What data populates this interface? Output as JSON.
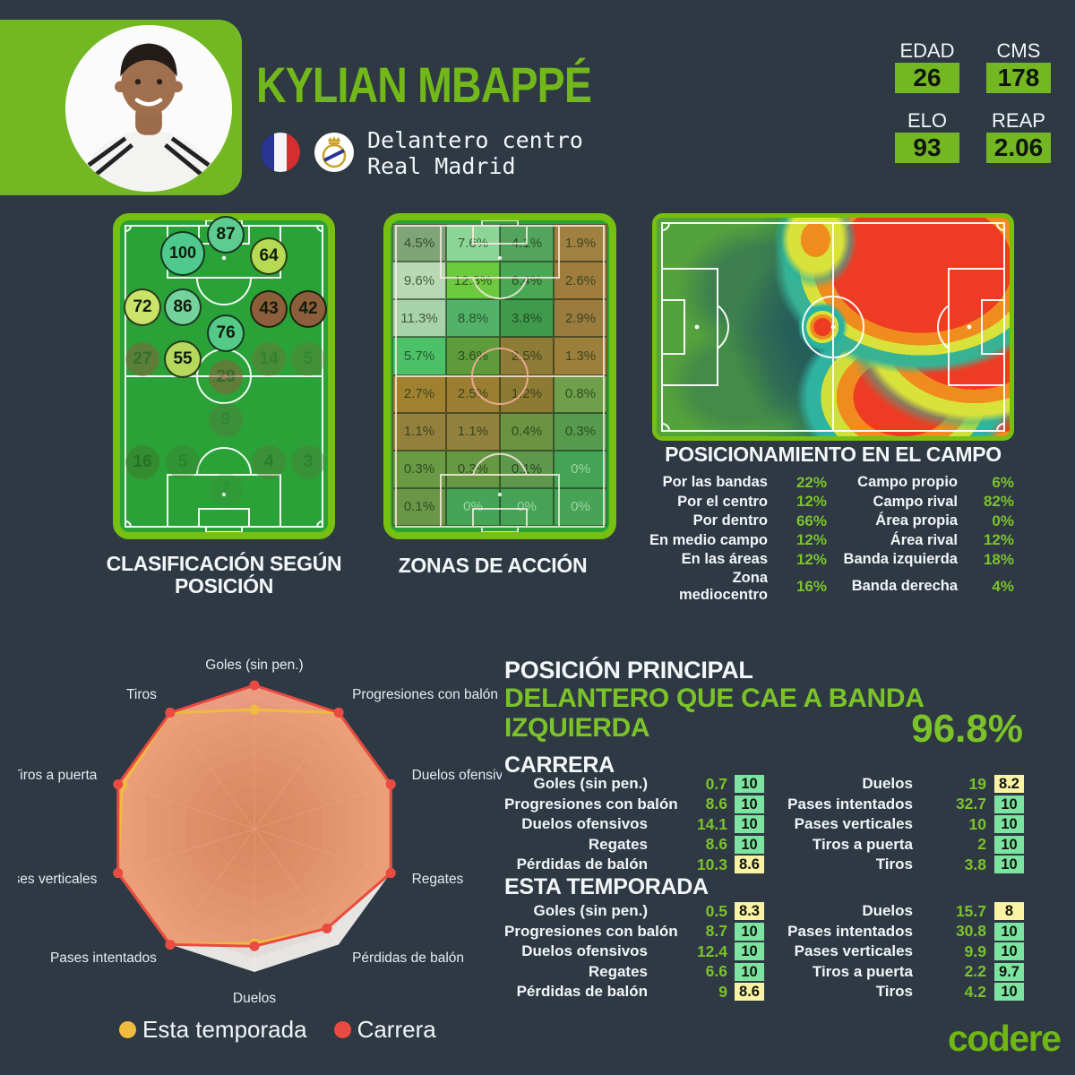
{
  "colors": {
    "background": "#2e3944",
    "accent_green": "#7cc32a",
    "block_green": "#73b822",
    "frame_green": "#76c011",
    "field_green": "#2aa238",
    "badge_green": "#7de3a1",
    "badge_yellow": "#f9f3a3",
    "carrera_red": "#ea4a41",
    "temporada_yellow": "#f0bc3f"
  },
  "header": {
    "name": "KYLIAN MBAPPÉ",
    "role": "Delantero centro",
    "club": "Real Madrid",
    "nationality_icon": "france-flag",
    "club_icon": "real-madrid-crest",
    "stats": [
      {
        "label": "EDAD",
        "value": "26"
      },
      {
        "label": "CMS",
        "value": "178"
      },
      {
        "label": "ELO",
        "value": "93"
      },
      {
        "label": "REAP",
        "value": "2.06"
      }
    ]
  },
  "profile": {
    "heading": "POSICIÓN PRINCIPAL",
    "position": "DELANTERO QUE CAE A BANDA IZQUIERDA",
    "percentage": "96.8%"
  },
  "brand": "codere",
  "chart_data": [
    {
      "type": "scatter",
      "title": "CLASIFICACIÓN SEGÚN POSICIÓN",
      "note": "rating bubbles on vertical pitch, x/y in % of field",
      "points": [
        {
          "label": "87",
          "x": 50.9,
          "y": 4.6,
          "color": "#5ecb90",
          "dim": false,
          "size": 38
        },
        {
          "label": "100",
          "x": 30.2,
          "y": 10.6,
          "color": "#4fca8c",
          "dim": false,
          "size": 46
        },
        {
          "label": "64",
          "x": 71.6,
          "y": 11.5,
          "color": "#b7da55",
          "dim": false,
          "size": 38
        },
        {
          "label": "72",
          "x": 10.8,
          "y": 27.9,
          "color": "#cbe369",
          "dim": false,
          "size": 38
        },
        {
          "label": "86",
          "x": 30.2,
          "y": 27.9,
          "color": "#74d39c",
          "dim": false,
          "size": 38
        },
        {
          "label": "43",
          "x": 71.6,
          "y": 28.4,
          "color": "#8d5e3b",
          "dim": false,
          "size": 38
        },
        {
          "label": "42",
          "x": 90.5,
          "y": 28.4,
          "color": "#8d5e3b",
          "dim": false,
          "size": 38
        },
        {
          "label": "76",
          "x": 50.9,
          "y": 36.2,
          "color": "#55ca87",
          "dim": false,
          "size": 38
        },
        {
          "label": "27",
          "x": 10.8,
          "y": 44.5,
          "color": "#8d5e3b",
          "dim": true,
          "size": 38,
          "opacity": 0.5
        },
        {
          "label": "55",
          "x": 30.2,
          "y": 44.5,
          "color": "#b4d95d",
          "dim": false,
          "size": 38
        },
        {
          "label": "14",
          "x": 71.6,
          "y": 44.5,
          "color": "#8d5e3b",
          "dim": true,
          "size": 38,
          "opacity": 0.32
        },
        {
          "label": "5",
          "x": 90.5,
          "y": 44.5,
          "color": "#8d5e3b",
          "dim": true,
          "size": 38,
          "opacity": 0.25
        },
        {
          "label": "29",
          "x": 50.9,
          "y": 50.3,
          "color": "#8d5e3b",
          "dim": true,
          "size": 38,
          "opacity": 0.55
        },
        {
          "label": "9",
          "x": 50.9,
          "y": 64.1,
          "color": "#7a5a40",
          "dim": true,
          "size": 38,
          "opacity": 0.25
        },
        {
          "label": "16",
          "x": 10.8,
          "y": 77.6,
          "color": "#3f7a2a",
          "dim": true,
          "size": 38,
          "opacity": 0.55
        },
        {
          "label": "5",
          "x": 30.2,
          "y": 77.6,
          "color": "#3f7a2a",
          "dim": true,
          "size": 38,
          "opacity": 0.35
        },
        {
          "label": "4",
          "x": 71.6,
          "y": 77.6,
          "color": "#55763a",
          "dim": true,
          "size": 38,
          "opacity": 0.4
        },
        {
          "label": "3",
          "x": 90.5,
          "y": 77.6,
          "color": "#55763a",
          "dim": true,
          "size": 38,
          "opacity": 0.35
        },
        {
          "label": "7",
          "x": 50.9,
          "y": 86.5,
          "color": "#55763a",
          "dim": true,
          "size": 38,
          "opacity": 0.16
        }
      ]
    },
    {
      "type": "heatmap",
      "title": "ZONAS DE ACCIÓN",
      "rows": 8,
      "cols": 4,
      "values": [
        [
          "4.5%",
          "7.6%",
          "4.1%",
          "1.9%"
        ],
        [
          "9.6%",
          "12.3%",
          "6.4%",
          "2.6%"
        ],
        [
          "11.3%",
          "8.8%",
          "3.8%",
          "2.9%"
        ],
        [
          "5.7%",
          "3.6%",
          "2.5%",
          "1.3%"
        ],
        [
          "2.7%",
          "2.5%",
          "1.2%",
          "0.8%"
        ],
        [
          "1.1%",
          "1.1%",
          "0.4%",
          "0.3%"
        ],
        [
          "0.3%",
          "0.3%",
          "0.1%",
          "0%"
        ],
        [
          "0.1%",
          "0%",
          "0%",
          "0%"
        ]
      ],
      "cell_colors": [
        [
          "#7fa477",
          "#8cd597",
          "#54a45d",
          "#a08142"
        ],
        [
          "#b7dab4",
          "#6cc93e",
          "#4aa854",
          "#9f7e3d"
        ],
        [
          "#a8d2a8",
          "#52b269",
          "#3f9b4b",
          "#997c3e"
        ],
        [
          "#4cc168",
          "#5d9b3b",
          "#8d7b36",
          "#9c7f3a"
        ],
        [
          "#a0812f",
          "#9a7f33",
          "#8e7b33",
          "#6f9f4a"
        ],
        [
          "#93803c",
          "#92813f",
          "#6b9342",
          "#569b4d"
        ],
        [
          "#6a9a44",
          "#679843",
          "#5f984c",
          "#45a355"
        ],
        [
          "#699647",
          "#46a456",
          "#46a355",
          "#47a456"
        ]
      ]
    },
    {
      "type": "table",
      "title": "POSICIONAMIENTO EN EL CAMPO",
      "left": [
        {
          "label": "Por las bandas",
          "value": "22%"
        },
        {
          "label": "Por el centro",
          "value": "12%"
        },
        {
          "label": "Por dentro",
          "value": "66%"
        },
        {
          "label": "En medio campo",
          "value": "12%"
        },
        {
          "label": "En las áreas",
          "value": "12%"
        },
        {
          "label": "Zona mediocentro",
          "value": "16%"
        }
      ],
      "right": [
        {
          "label": "Campo propio",
          "value": "6%"
        },
        {
          "label": "Campo rival",
          "value": "82%"
        },
        {
          "label": "Área propia",
          "value": "0%"
        },
        {
          "label": "Área rival",
          "value": "12%"
        },
        {
          "label": "Banda izquierda",
          "value": "18%"
        },
        {
          "label": "Banda derecha",
          "value": "4%"
        }
      ]
    },
    {
      "type": "radar",
      "max": 10,
      "axes": [
        "Goles (sin pen.)",
        "Progresiones con balón",
        "Duelos ofensivos",
        "Regates",
        "Pérdidas de balón",
        "Duelos",
        "Pases intentados",
        "Pases verticales",
        "Tiros a puerta",
        "Tiros"
      ],
      "series": [
        {
          "name": "Esta temporada",
          "color": "#f0bc3f",
          "values": [
            8.3,
            10,
            10,
            10,
            8.6,
            8,
            10,
            10,
            9.7,
            10
          ]
        },
        {
          "name": "Carrera",
          "color": "#ea4a41",
          "values": [
            10,
            10,
            10,
            10,
            8.6,
            8.2,
            10,
            10,
            10,
            10
          ]
        }
      ],
      "legend_position": "bottom"
    },
    {
      "type": "table",
      "title": "CARRERA",
      "left": [
        {
          "label": "Goles (sin pen.)",
          "value": "0.7",
          "rating": "10",
          "tone": "green"
        },
        {
          "label": "Progresiones con balón",
          "value": "8.6",
          "rating": "10",
          "tone": "green"
        },
        {
          "label": "Duelos ofensivos",
          "value": "14.1",
          "rating": "10",
          "tone": "green"
        },
        {
          "label": "Regates",
          "value": "8.6",
          "rating": "10",
          "tone": "green"
        },
        {
          "label": "Pérdidas de balón",
          "value": "10.3",
          "rating": "8.6",
          "tone": "yellow"
        }
      ],
      "right": [
        {
          "label": "Duelos",
          "value": "19",
          "rating": "8.2",
          "tone": "yellow"
        },
        {
          "label": "Pases intentados",
          "value": "32.7",
          "rating": "10",
          "tone": "green"
        },
        {
          "label": "Pases verticales",
          "value": "10",
          "rating": "10",
          "tone": "green"
        },
        {
          "label": "Tiros a puerta",
          "value": "2",
          "rating": "10",
          "tone": "green"
        },
        {
          "label": "Tiros",
          "value": "3.8",
          "rating": "10",
          "tone": "green"
        }
      ]
    },
    {
      "type": "table",
      "title": "ESTA TEMPORADA",
      "left": [
        {
          "label": "Goles (sin pen.)",
          "value": "0.5",
          "rating": "8.3",
          "tone": "yellow"
        },
        {
          "label": "Progresiones con balón",
          "value": "8.7",
          "rating": "10",
          "tone": "green"
        },
        {
          "label": "Duelos ofensivos",
          "value": "12.4",
          "rating": "10",
          "tone": "green"
        },
        {
          "label": "Regates",
          "value": "6.6",
          "rating": "10",
          "tone": "green"
        },
        {
          "label": "Pérdidas de balón",
          "value": "9",
          "rating": "8.6",
          "tone": "yellow"
        }
      ],
      "right": [
        {
          "label": "Duelos",
          "value": "15.7",
          "rating": "8",
          "tone": "yellow"
        },
        {
          "label": "Pases intentados",
          "value": "30.8",
          "rating": "10",
          "tone": "green"
        },
        {
          "label": "Pases verticales",
          "value": "9.9",
          "rating": "10",
          "tone": "green"
        },
        {
          "label": "Tiros a puerta",
          "value": "2.2",
          "rating": "9.7",
          "tone": "green"
        },
        {
          "label": "Tiros",
          "value": "4.2",
          "rating": "10",
          "tone": "green"
        }
      ]
    }
  ]
}
